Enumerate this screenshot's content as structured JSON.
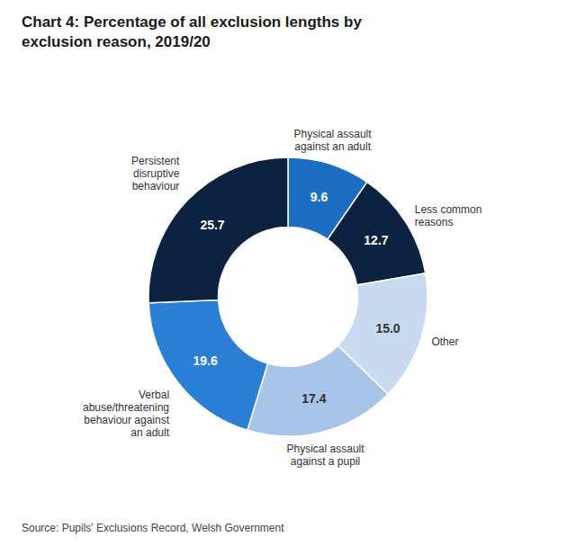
{
  "chart_data": {
    "type": "donut",
    "title": "Chart 4: Percentage of all exclusion lengths by\nexclusion reason, 2019/20",
    "source": "Source: Pupils' Exclusions Record, Welsh Government",
    "categories": [
      "Physical assault\nagainst an adult",
      "Less common\nreasons",
      "Other",
      "Physical assault\nagainst a pupil",
      "Verbal\nabuse/threatening\nbehaviour against\nan adult",
      "Persistent\ndisruptive\nbehaviour"
    ],
    "values": [
      9.6,
      12.7,
      15.0,
      17.4,
      19.6,
      25.7
    ],
    "value_labels": [
      "9.6",
      "12.7",
      "15.0",
      "17.4",
      "19.6",
      "25.7"
    ],
    "colors": [
      "#1b6ec2",
      "#0d2240",
      "#c9d9f0",
      "#a8c4e8",
      "#2b7fd4",
      "#0d2240"
    ],
    "data_labels": true
  }
}
